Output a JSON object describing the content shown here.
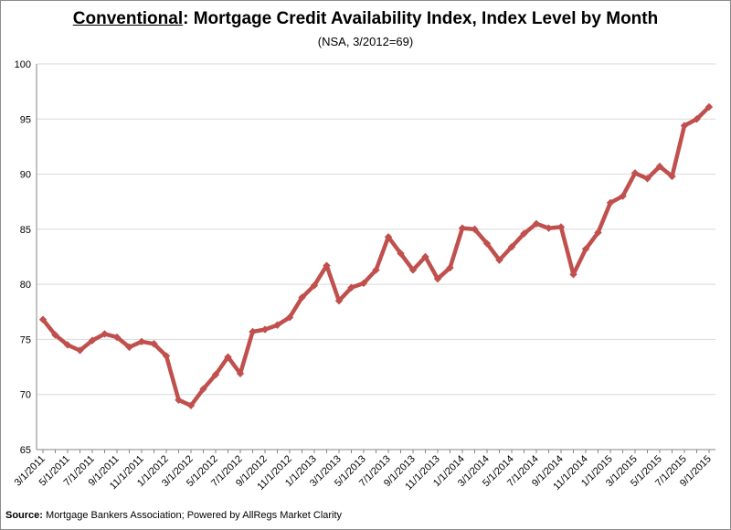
{
  "header": {
    "title_emphasis": "Conventional",
    "title_rest": ": Mortgage Credit Availability Index, Index Level by Month",
    "subtitle": "(NSA, 3/2012=69)"
  },
  "footer": {
    "source_label": "Source:",
    "source_text": " Mortgage Bankers Association; Powered by AllRegs Market Clarity"
  },
  "chart_data": {
    "type": "line",
    "title": "Conventional: Mortgage Credit Availability Index, Index Level by Month",
    "subtitle": "(NSA, 3/2012=69)",
    "xlabel": "",
    "ylabel": "",
    "ylim": [
      65,
      100
    ],
    "yticks": [
      65,
      70,
      75,
      80,
      85,
      90,
      95,
      100
    ],
    "grid": "horizontal",
    "legend": "none",
    "line_color": "#c0504d",
    "x": [
      "3/1/2011",
      "4/1/2011",
      "5/1/2011",
      "6/1/2011",
      "7/1/2011",
      "8/1/2011",
      "9/1/2011",
      "10/1/2011",
      "11/1/2011",
      "12/1/2011",
      "1/1/2012",
      "2/1/2012",
      "3/1/2012",
      "4/1/2012",
      "5/1/2012",
      "6/1/2012",
      "7/1/2012",
      "8/1/2012",
      "9/1/2012",
      "10/1/2012",
      "11/1/2012",
      "12/1/2012",
      "1/1/2013",
      "2/1/2013",
      "3/1/2013",
      "4/1/2013",
      "5/1/2013",
      "6/1/2013",
      "7/1/2013",
      "8/1/2013",
      "9/1/2013",
      "10/1/2013",
      "11/1/2013",
      "12/1/2013",
      "1/1/2014",
      "2/1/2014",
      "3/1/2014",
      "4/1/2014",
      "5/1/2014",
      "6/1/2014",
      "7/1/2014",
      "8/1/2014",
      "9/1/2014",
      "10/1/2014",
      "11/1/2014",
      "12/1/2014",
      "1/1/2015",
      "2/1/2015",
      "3/1/2015",
      "4/1/2015",
      "5/1/2015",
      "6/1/2015",
      "7/1/2015",
      "8/1/2015",
      "9/1/2015"
    ],
    "tick_labels": [
      "3/1/2011",
      "5/1/2011",
      "7/1/2011",
      "9/1/2011",
      "11/1/2011",
      "1/1/2012",
      "3/1/2012",
      "5/1/2012",
      "7/1/2012",
      "9/1/2012",
      "11/1/2012",
      "1/1/2013",
      "3/1/2013",
      "5/1/2013",
      "7/1/2013",
      "9/1/2013",
      "11/1/2013",
      "1/1/2014",
      "3/1/2014",
      "5/1/2014",
      "7/1/2014",
      "9/1/2014",
      "11/1/2014",
      "1/1/2015",
      "3/1/2015",
      "5/1/2015",
      "7/1/2015",
      "9/1/2015"
    ],
    "series": [
      {
        "values": [
          76.8,
          75.4,
          74.5,
          74.0,
          74.9,
          75.5,
          75.2,
          74.3,
          74.8,
          74.6,
          73.5,
          69.5,
          69.0,
          70.5,
          71.8,
          73.4,
          71.9,
          75.7,
          75.9,
          76.3,
          77.0,
          78.8,
          79.9,
          81.7,
          78.5,
          79.7,
          80.1,
          81.3,
          84.3,
          82.8,
          81.3,
          82.5,
          80.5,
          81.5,
          85.1,
          85.0,
          83.7,
          82.2,
          83.4,
          84.6,
          85.5,
          85.1,
          85.2,
          80.9,
          83.2,
          84.7,
          87.4,
          88.0,
          90.1,
          89.6,
          90.7,
          89.8,
          94.4,
          95.0,
          96.1
        ]
      }
    ]
  }
}
